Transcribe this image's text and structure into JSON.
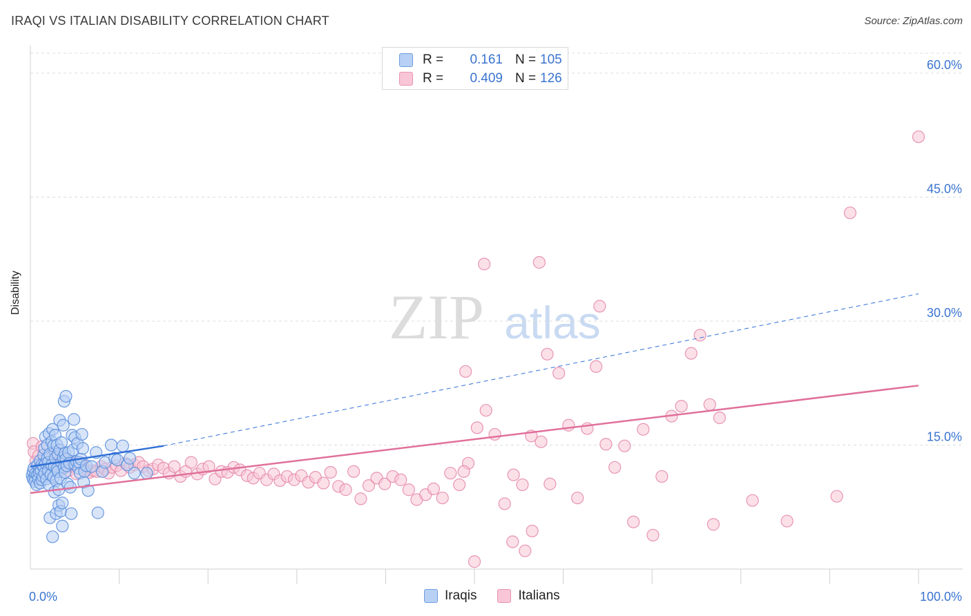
{
  "header": {
    "title": "IRAQI VS ITALIAN DISABILITY CORRELATION CHART",
    "source": "Source: ZipAtlas.com"
  },
  "watermark": {
    "zip": "ZIP",
    "atlas": "atlas"
  },
  "legend_stats": {
    "rows": [
      {
        "r_label": "R =",
        "r_value": "0.161",
        "n_label": "N =",
        "n_value": "105",
        "color": "#6f9de0"
      },
      {
        "r_label": "R =",
        "r_value": "0.409",
        "n_label": "N =",
        "n_value": "126",
        "color": "#e893b2"
      }
    ]
  },
  "legend_bottom": {
    "items": [
      "Iraqis",
      "Italians"
    ]
  },
  "colors": {
    "blue_fill": "#b8d0f4",
    "blue_stroke": "#5b8fdc",
    "blue_line": "#2f6fd6",
    "pink_fill": "#f8c6d6",
    "pink_stroke": "#e68aac",
    "pink_line": "#e0709a",
    "axis_text": "#3a73d0",
    "grid": "#dcdcdc"
  },
  "chart_data": {
    "type": "scatter",
    "title": "IRAQI VS ITALIAN DISABILITY CORRELATION CHART",
    "xlabel": "",
    "ylabel": "Disability",
    "xlim": [
      0,
      100
    ],
    "ylim": [
      0,
      63
    ],
    "x_tick_labels": [
      "0.0%",
      "100.0%"
    ],
    "y_ticks": [
      15,
      30,
      45,
      60
    ],
    "y_tick_labels": [
      "15.0%",
      "30.0%",
      "45.0%",
      "60.0%"
    ],
    "grid": true,
    "x_scale": "linear",
    "series": [
      {
        "name": "Iraqis",
        "r": 0.161,
        "n": 105,
        "trend_solid": {
          "x": [
            0,
            15
          ],
          "y": [
            12.4,
            14.9
          ]
        },
        "trend_dashed": {
          "x": [
            15,
            100
          ],
          "y": [
            14.9,
            33.3
          ]
        },
        "points": [
          [
            0.2,
            11.3
          ],
          [
            0.3,
            10.9
          ],
          [
            0.3,
            11.8
          ],
          [
            0.4,
            12.2
          ],
          [
            0.5,
            11.1
          ],
          [
            0.5,
            10.6
          ],
          [
            0.6,
            11.6
          ],
          [
            0.7,
            10.2
          ],
          [
            0.8,
            12.6
          ],
          [
            0.8,
            11.4
          ],
          [
            0.9,
            10.9
          ],
          [
            1.0,
            12.1
          ],
          [
            1.0,
            11.7
          ],
          [
            1.1,
            13.1
          ],
          [
            1.1,
            10.4
          ],
          [
            1.2,
            11.9
          ],
          [
            1.3,
            12.6
          ],
          [
            1.3,
            10.8
          ],
          [
            1.4,
            11.2
          ],
          [
            1.5,
            12.4
          ],
          [
            1.5,
            13.8
          ],
          [
            1.6,
            14.6
          ],
          [
            1.6,
            11.6
          ],
          [
            1.7,
            12.8
          ],
          [
            1.7,
            16.0
          ],
          [
            1.8,
            10.9
          ],
          [
            1.9,
            13.4
          ],
          [
            1.9,
            15.0
          ],
          [
            2.0,
            11.9
          ],
          [
            2.0,
            12.9
          ],
          [
            2.1,
            16.4
          ],
          [
            2.1,
            10.2
          ],
          [
            2.2,
            13.9
          ],
          [
            2.2,
            6.2
          ],
          [
            2.3,
            11.4
          ],
          [
            2.4,
            15.4
          ],
          [
            2.4,
            12.6
          ],
          [
            2.5,
            16.9
          ],
          [
            2.5,
            3.9
          ],
          [
            2.6,
            14.9
          ],
          [
            2.6,
            11.1
          ],
          [
            2.7,
            12.4
          ],
          [
            2.7,
            9.3
          ],
          [
            2.8,
            16.2
          ],
          [
            2.8,
            13.4
          ],
          [
            2.9,
            10.7
          ],
          [
            2.9,
            6.7
          ],
          [
            3.0,
            15.0
          ],
          [
            3.0,
            12.1
          ],
          [
            3.1,
            11.8
          ],
          [
            3.1,
            13.9
          ],
          [
            3.2,
            7.7
          ],
          [
            3.2,
            9.6
          ],
          [
            3.3,
            14.4
          ],
          [
            3.3,
            18.0
          ],
          [
            3.4,
            11.0
          ],
          [
            3.4,
            7.0
          ],
          [
            3.5,
            12.9
          ],
          [
            3.5,
            15.3
          ],
          [
            3.6,
            8.0
          ],
          [
            3.6,
            5.2
          ],
          [
            3.7,
            13.5
          ],
          [
            3.7,
            17.4
          ],
          [
            3.8,
            20.3
          ],
          [
            3.8,
            12.3
          ],
          [
            3.9,
            11.7
          ],
          [
            3.9,
            14.0
          ],
          [
            4.0,
            20.9
          ],
          [
            4.0,
            13.3
          ],
          [
            4.1,
            12.5
          ],
          [
            4.2,
            10.3
          ],
          [
            4.3,
            14.1
          ],
          [
            4.4,
            12.8
          ],
          [
            4.5,
            9.9
          ],
          [
            4.6,
            6.7
          ],
          [
            4.7,
            16.2
          ],
          [
            4.8,
            14.4
          ],
          [
            4.9,
            18.1
          ],
          [
            5.0,
            12.7
          ],
          [
            5.0,
            15.9
          ],
          [
            5.2,
            13.0
          ],
          [
            5.3,
            15.2
          ],
          [
            5.4,
            12.2
          ],
          [
            5.5,
            12.9
          ],
          [
            5.6,
            11.6
          ],
          [
            5.7,
            13.3
          ],
          [
            5.8,
            16.3
          ],
          [
            5.9,
            14.6
          ],
          [
            6.0,
            10.5
          ],
          [
            6.1,
            11.8
          ],
          [
            6.3,
            12.5
          ],
          [
            6.5,
            9.5
          ],
          [
            6.9,
            12.4
          ],
          [
            7.4,
            14.1
          ],
          [
            7.6,
            6.8
          ],
          [
            8.1,
            11.8
          ],
          [
            8.4,
            12.9
          ],
          [
            9.1,
            15.0
          ],
          [
            9.5,
            13.4
          ],
          [
            9.8,
            13.2
          ],
          [
            10.4,
            14.9
          ],
          [
            10.9,
            12.6
          ],
          [
            11.2,
            13.4
          ],
          [
            11.7,
            11.6
          ],
          [
            13.1,
            11.6
          ]
        ]
      },
      {
        "name": "Italians",
        "r": 0.409,
        "n": 126,
        "trend_solid": {
          "x": [
            0,
            100
          ],
          "y": [
            9.2,
            22.2
          ]
        },
        "points": [
          [
            0.3,
            15.2
          ],
          [
            0.4,
            14.2
          ],
          [
            0.6,
            13.0
          ],
          [
            0.9,
            13.7
          ],
          [
            1.1,
            12.7
          ],
          [
            1.3,
            14.8
          ],
          [
            1.6,
            12.4
          ],
          [
            1.9,
            13.4
          ],
          [
            2.2,
            12.9
          ],
          [
            2.5,
            13.3
          ],
          [
            2.8,
            14.1
          ],
          [
            3.1,
            12.6
          ],
          [
            3.4,
            13.7
          ],
          [
            3.7,
            12.1
          ],
          [
            4.0,
            13.0
          ],
          [
            4.3,
            11.9
          ],
          [
            4.6,
            12.4
          ],
          [
            4.9,
            12.8
          ],
          [
            5.2,
            11.5
          ],
          [
            5.6,
            12.9
          ],
          [
            5.9,
            12.6
          ],
          [
            6.3,
            12.0
          ],
          [
            6.7,
            11.7
          ],
          [
            7.1,
            11.9
          ],
          [
            7.5,
            11.8
          ],
          [
            8.0,
            12.4
          ],
          [
            8.4,
            12.1
          ],
          [
            8.8,
            11.6
          ],
          [
            9.2,
            12.3
          ],
          [
            9.7,
            12.5
          ],
          [
            10.2,
            11.9
          ],
          [
            10.7,
            12.8
          ],
          [
            11.2,
            12.3
          ],
          [
            11.7,
            12.6
          ],
          [
            12.2,
            12.9
          ],
          [
            12.7,
            12.4
          ],
          [
            13.3,
            11.9
          ],
          [
            13.8,
            12.1
          ],
          [
            14.4,
            12.6
          ],
          [
            15.0,
            12.2
          ],
          [
            15.6,
            11.6
          ],
          [
            16.2,
            12.4
          ],
          [
            16.9,
            11.2
          ],
          [
            17.5,
            11.8
          ],
          [
            18.1,
            12.9
          ],
          [
            18.8,
            11.5
          ],
          [
            19.4,
            12.1
          ],
          [
            20.1,
            12.4
          ],
          [
            20.8,
            10.9
          ],
          [
            21.5,
            11.8
          ],
          [
            22.2,
            11.7
          ],
          [
            22.9,
            12.3
          ],
          [
            23.6,
            12.0
          ],
          [
            24.4,
            11.3
          ],
          [
            25.1,
            11.0
          ],
          [
            25.8,
            11.6
          ],
          [
            26.6,
            10.8
          ],
          [
            27.4,
            11.5
          ],
          [
            28.1,
            10.7
          ],
          [
            28.9,
            11.2
          ],
          [
            29.7,
            10.8
          ],
          [
            30.5,
            11.3
          ],
          [
            31.3,
            10.5
          ],
          [
            32.1,
            11.1
          ],
          [
            33.0,
            10.4
          ],
          [
            33.8,
            11.7
          ],
          [
            34.7,
            10.0
          ],
          [
            35.5,
            9.6
          ],
          [
            36.4,
            11.8
          ],
          [
            37.2,
            8.5
          ],
          [
            38.1,
            10.1
          ],
          [
            39.0,
            11.0
          ],
          [
            39.9,
            10.3
          ],
          [
            40.8,
            11.2
          ],
          [
            41.7,
            10.8
          ],
          [
            42.6,
            9.6
          ],
          [
            43.5,
            8.4
          ],
          [
            44.5,
            9.0
          ],
          [
            45.4,
            9.7
          ],
          [
            46.4,
            8.6
          ],
          [
            47.3,
            11.6
          ],
          [
            48.3,
            10.2
          ],
          [
            49.3,
            12.8
          ],
          [
            50.3,
            17.1
          ],
          [
            51.3,
            19.2
          ],
          [
            52.3,
            16.3
          ],
          [
            53.4,
            7.9
          ],
          [
            54.4,
            11.4
          ],
          [
            55.4,
            10.2
          ],
          [
            56.4,
            16.1
          ],
          [
            57.5,
            15.4
          ],
          [
            58.5,
            10.3
          ],
          [
            59.5,
            23.7
          ],
          [
            60.6,
            17.4
          ],
          [
            61.6,
            8.6
          ],
          [
            62.7,
            17.0
          ],
          [
            63.7,
            24.5
          ],
          [
            64.8,
            15.1
          ],
          [
            65.8,
            12.3
          ],
          [
            66.9,
            14.9
          ],
          [
            67.9,
            5.7
          ],
          [
            69.0,
            16.9
          ],
          [
            70.1,
            4.1
          ],
          [
            71.1,
            11.2
          ],
          [
            72.2,
            18.5
          ],
          [
            73.3,
            19.7
          ],
          [
            74.4,
            26.1
          ],
          [
            75.4,
            28.3
          ],
          [
            76.5,
            19.9
          ],
          [
            77.6,
            18.3
          ],
          [
            58.2,
            26.0
          ],
          [
            49.0,
            23.9
          ],
          [
            57.3,
            37.1
          ],
          [
            51.1,
            36.9
          ],
          [
            64.1,
            31.8
          ],
          [
            54.3,
            3.3
          ],
          [
            56.5,
            4.6
          ],
          [
            55.7,
            2.2
          ],
          [
            50.0,
            0.9
          ],
          [
            48.8,
            11.8
          ],
          [
            76.9,
            5.4
          ],
          [
            81.3,
            8.3
          ],
          [
            85.2,
            5.8
          ],
          [
            90.8,
            8.8
          ],
          [
            92.3,
            43.1
          ],
          [
            100.0,
            52.3
          ]
        ]
      }
    ]
  }
}
